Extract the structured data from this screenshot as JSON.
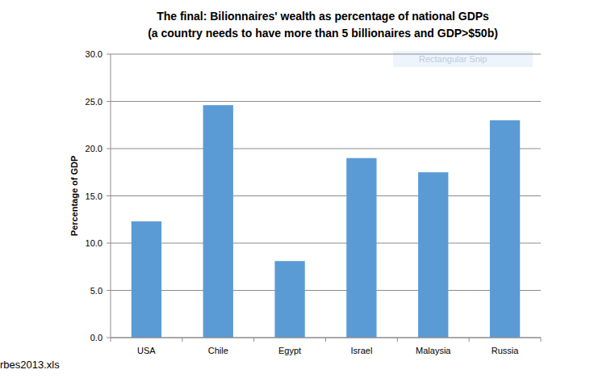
{
  "chart_data": {
    "type": "bar",
    "title": "The final: Bilionnaires' wealth as percentage of national GDPs",
    "subtitle": "(a country needs to have more than 5 billionaires and GDP>$50b)",
    "y_label": "Percentage of GDP",
    "categories": [
      "USA",
      "Chile",
      "Egypt",
      "Israel",
      "Malaysia",
      "Russia"
    ],
    "values": [
      12.3,
      24.6,
      8.1,
      19.0,
      17.5,
      23.0
    ],
    "color": "#5b9bd5",
    "ylim": [
      0,
      30
    ],
    "yticks": [
      {
        "value": 0,
        "label": "0.0"
      },
      {
        "value": 5,
        "label": "5.0"
      },
      {
        "value": 10,
        "label": "10.0"
      },
      {
        "value": 15,
        "label": "15.0"
      },
      {
        "value": 20,
        "label": "20.0"
      },
      {
        "value": 25,
        "label": "25.0"
      },
      {
        "value": 30,
        "label": "30.0"
      }
    ],
    "grid": true,
    "annotations": [
      "Rectangular Snip",
      "rbes2013.xls"
    ]
  }
}
